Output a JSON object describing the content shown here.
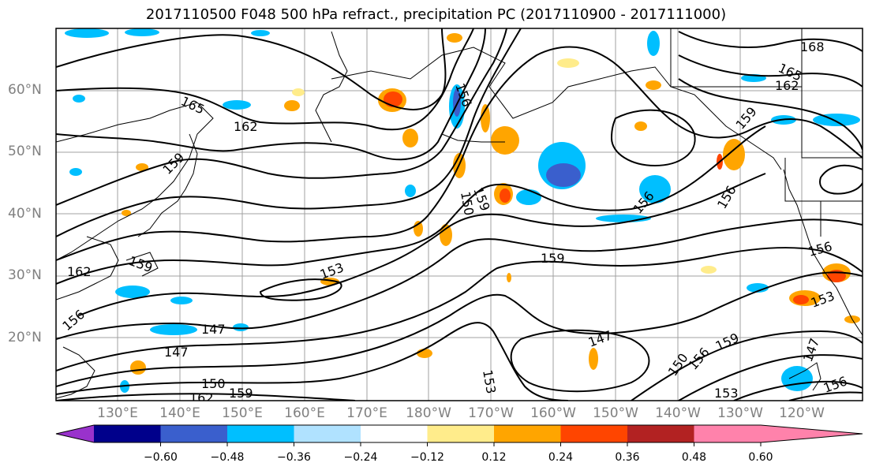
{
  "title": "2017110500 F048 500 hPa refract., precipitation PC (2017110900 - 2017111000)",
  "lat_labels": [
    "60°N",
    "50°N",
    "40°N",
    "30°N",
    "20°N"
  ],
  "lon_labels": [
    "130°E",
    "140°E",
    "150°E",
    "160°E",
    "170°E",
    "180°W",
    "170°W",
    "160°W",
    "150°W",
    "140°W",
    "130°W",
    "120°W"
  ],
  "colorbar": {
    "ticks": [
      "−0.60",
      "−0.48",
      "−0.36",
      "−0.24",
      "−0.12",
      "0.12",
      "0.24",
      "0.36",
      "0.48",
      "0.60"
    ],
    "colors": [
      "#9932cc",
      "#00008b",
      "#3a5fcd",
      "#00bfff",
      "#b0e2ff",
      "#ffffff",
      "#ffec8b",
      "#ffa500",
      "#ff4500",
      "#b22222",
      "#ff82ab"
    ]
  },
  "contour_labels": [
    "168",
    "165",
    "162",
    "159",
    "165",
    "162",
    "159",
    "156",
    "159",
    "156",
    "150",
    "156",
    "153",
    "159",
    "162",
    "159",
    "156",
    "147",
    "147",
    "147",
    "150",
    "156",
    "159",
    "153",
    "153",
    "150",
    "159",
    "162",
    "156",
    "147",
    "156",
    "153"
  ]
}
